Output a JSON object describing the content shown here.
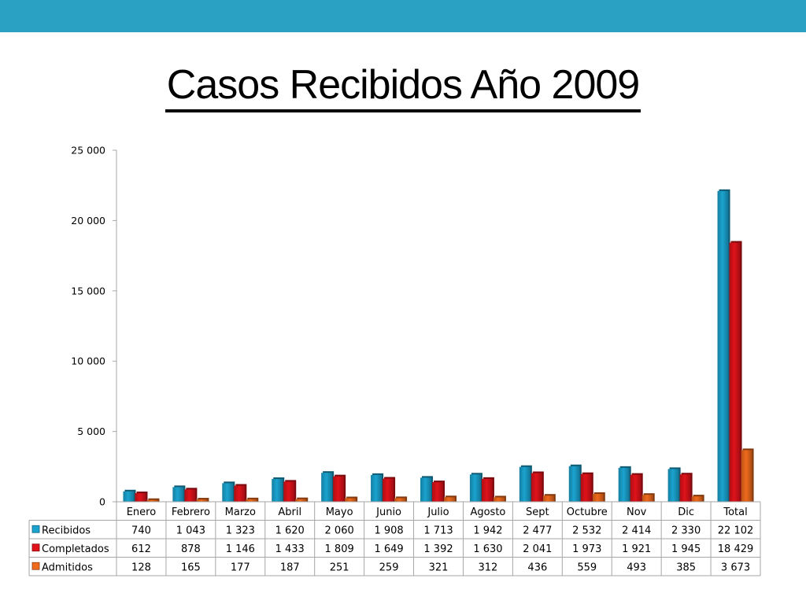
{
  "slide": {
    "title": "Casos Recibidos Año 2009",
    "accent_color": "#2aa0c2"
  },
  "chart_data": {
    "type": "bar",
    "title": "",
    "xlabel": "",
    "ylabel": "",
    "ylim": [
      0,
      25000
    ],
    "yticks": [
      0,
      5000,
      10000,
      15000,
      20000,
      25000
    ],
    "ytick_labels": [
      "0",
      "5 000",
      "10 000",
      "15 000",
      "20 000",
      "25 000"
    ],
    "grid": false,
    "legend": "data-table",
    "categories": [
      "Enero",
      "Febrero",
      "Marzo",
      "Abril",
      "Mayo",
      "Junio",
      "Julio",
      "Agosto",
      "Sept",
      "Octubre",
      "Nov",
      "Dic",
      "Total"
    ],
    "series": [
      {
        "name": "Recibidos",
        "color": "#1aa3cf",
        "values": [
          740,
          1043,
          1323,
          1620,
          2060,
          1908,
          1713,
          1942,
          2477,
          2532,
          2414,
          2330,
          22102
        ],
        "labels": [
          "740",
          "1 043",
          "1 323",
          "1 620",
          "2 060",
          "1 908",
          "1 713",
          "1 942",
          "2 477",
          "2 532",
          "2 414",
          "2 330",
          "22 102"
        ]
      },
      {
        "name": "Completados",
        "color": "#e0121a",
        "values": [
          612,
          878,
          1146,
          1433,
          1809,
          1649,
          1392,
          1630,
          2041,
          1973,
          1921,
          1945,
          18429
        ],
        "labels": [
          "612",
          "878",
          "1 146",
          "1 433",
          "1 809",
          "1 649",
          "1 392",
          "1 630",
          "2 041",
          "1 973",
          "1 921",
          "1 945",
          "18 429"
        ]
      },
      {
        "name": "Admitidos",
        "color": "#ef6a1c",
        "values": [
          128,
          165,
          177,
          187,
          251,
          259,
          321,
          312,
          436,
          559,
          493,
          385,
          3673
        ],
        "labels": [
          "128",
          "165",
          "177",
          "187",
          "251",
          "259",
          "321",
          "312",
          "436",
          "559",
          "493",
          "385",
          "3 673"
        ]
      }
    ]
  }
}
